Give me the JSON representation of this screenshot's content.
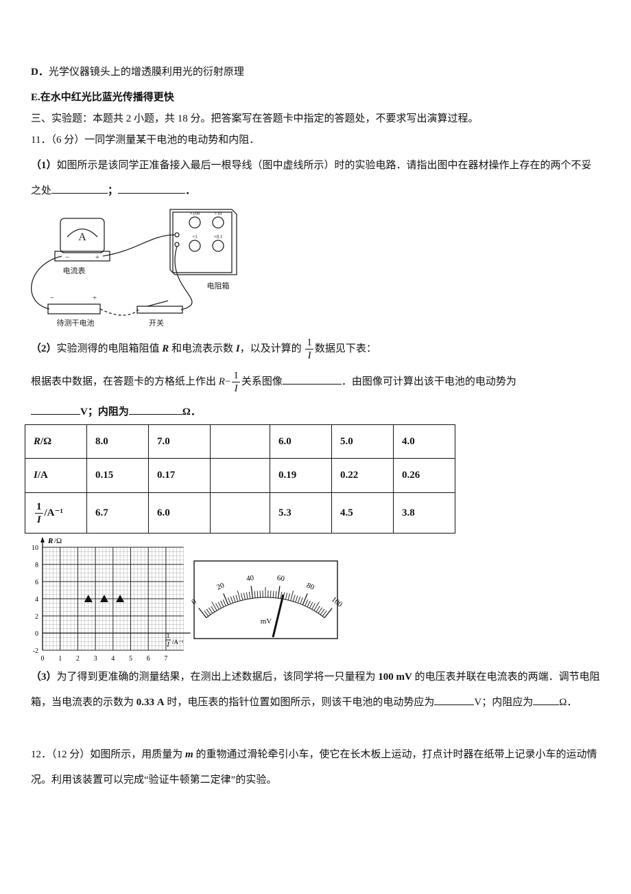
{
  "option_d": {
    "label": "D．",
    "text": "光学仪器镜头上的增透膜利用光的衍射原理"
  },
  "option_e": "E.在水中红光比蓝光传播得更快",
  "section_heading": "三、实验题：本题共 2 小题，共 18 分。把答案写在答题卡中指定的答题处，不要求写出演算过程。",
  "q11": {
    "stem": "11．（6 分）一同学测量某干电池的电动势和内阻．",
    "part1": {
      "label": "（1）",
      "text": "如图所示是该同学正准备接入最后一根导线（图中虚线所示）时的实验电路．请指出图中在器材操作上存在的两个不妥之处",
      "sep": "；",
      "end": "．"
    },
    "circuit": {
      "ammeter_symbol": "A",
      "ammeter_minus": "−",
      "ammeter_plus": "+",
      "ammeter": "电流表",
      "box": "电阻箱",
      "dials": [
        "×100",
        "×10",
        "×1",
        "×0.1"
      ],
      "battery": "待测干电池",
      "battery_minus": "−",
      "battery_plus": "+",
      "switch": "开关"
    },
    "part2": {
      "label": "（2）",
      "t1": "实验测得的电阻箱阻值 ",
      "R": "R",
      "t2": " 和电流表示数 ",
      "I": "I",
      "t3": "，以及计算的 ",
      "frac_num": "1",
      "frac_den": "I",
      "t4": "数据见下表：",
      "line2": {
        "t1": "根据表中数据，在答题卡的方格纸上作出 ",
        "R": "R",
        "minus": "−",
        "frac_num": "1",
        "frac_den": "I",
        "t2": "关系图像",
        "t3": "．由图像可计算出该干电池的电动势为"
      },
      "line3": {
        "t1": "V；内阻为",
        "t2": "Ω．"
      }
    },
    "table": {
      "rows": [
        {
          "symbol": "R",
          "unit": "/Ω",
          "cells": [
            "8.0",
            "7.0",
            null,
            "6.0",
            "5.0",
            "4.0"
          ]
        },
        {
          "symbol": "I",
          "unit": "/A",
          "cells": [
            "0.15",
            "0.17",
            null,
            "0.19",
            "0.22",
            "0.26"
          ]
        },
        {
          "frac_num": "1",
          "frac_den": "I",
          "unit": "/A⁻¹",
          "cells": [
            "6.7",
            "6.0",
            null,
            "5.3",
            "4.5",
            "3.8"
          ]
        }
      ]
    },
    "graph": {
      "y_label": {
        "symbol": "R",
        "unit": "/Ω"
      },
      "x_label": {
        "frac_num": "1",
        "frac_den": "I",
        "unit": "/A⁻¹"
      },
      "xlim": [
        0,
        8
      ],
      "ylim": [
        -2,
        10
      ],
      "xticks": [
        0,
        1,
        2,
        3,
        4,
        5,
        6,
        7
      ],
      "yticks": [
        -2,
        0,
        2,
        4,
        6,
        8,
        10
      ],
      "points": {
        "x": [
          2.6,
          3.5,
          4.4
        ],
        "y": [
          4,
          4,
          4
        ]
      }
    },
    "voltmeter": {
      "lim": [
        0,
        100
      ],
      "ticks": [
        0,
        20,
        40,
        60,
        80,
        100
      ],
      "unit": "mV"
    },
    "part3": {
      "label": "（3）",
      "t1": "为了得到更准确的测量结果，在测出上述数据后，该同学将一只量程为 ",
      "range": "100 mV",
      "t2": " 的电压表并联在电流表的两端．调节电阻箱，当电流表的示数为 ",
      "current": "0.33 A",
      "t3": " 时，电压表的指针位置如图所示，则该干电池的电动势应为",
      "t4": "V；内阻应为",
      "t5": "Ω．"
    }
  },
  "q12": {
    "t1": "12．（12 分）如图所示，用质量为 ",
    "m": "m",
    "t2": " 的重物通过滑轮牵引小车，使它在长木板上运动，打点计时器在纸带上记录小车的运动情况。利用该装置可以完成“验证牛顿第二定律”的实验。"
  }
}
